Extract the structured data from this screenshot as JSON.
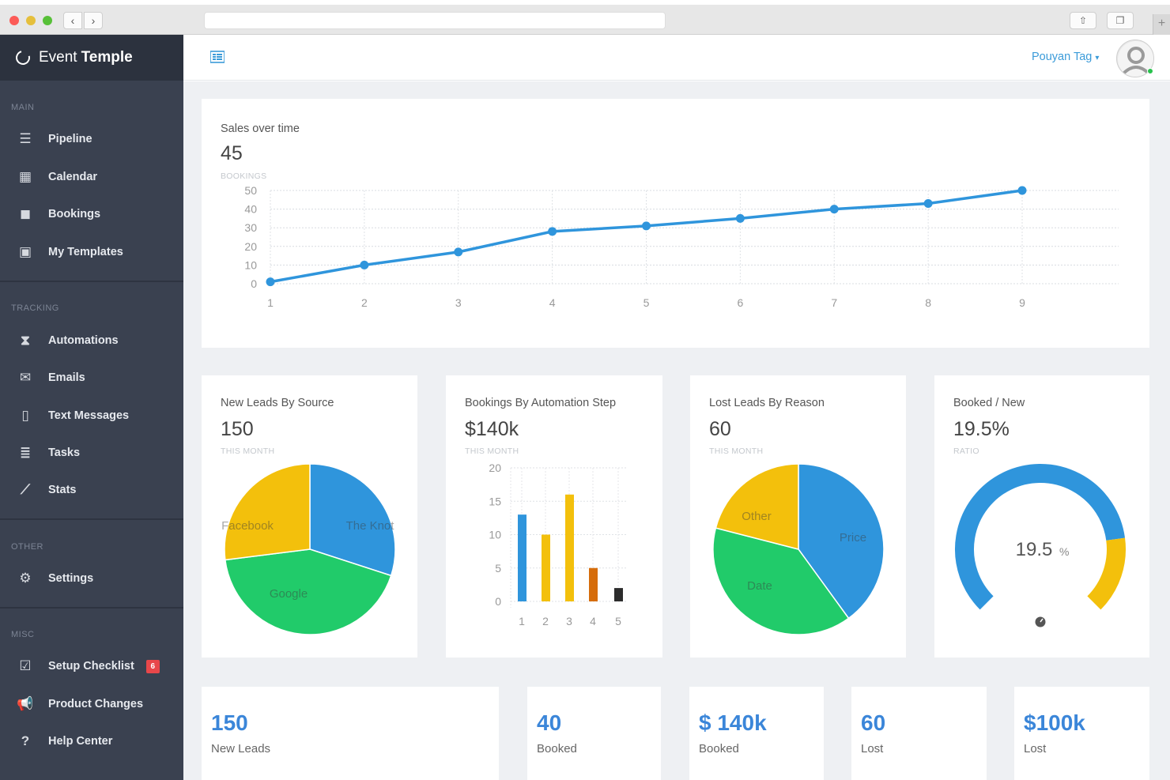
{
  "app": {
    "name_light": "Event",
    "name_bold": "Temple"
  },
  "sidebar": {
    "sections": [
      {
        "title": "MAIN",
        "items": [
          {
            "label": "Pipeline",
            "icon": "pipeline-icon"
          },
          {
            "label": "Calendar",
            "icon": "calendar-icon"
          },
          {
            "label": "Bookings",
            "icon": "bookmark-icon"
          },
          {
            "label": "My Templates",
            "icon": "templates-icon"
          }
        ]
      },
      {
        "title": "TRACKING",
        "items": [
          {
            "label": "Automations",
            "icon": "hourglass-icon"
          },
          {
            "label": "Emails",
            "icon": "envelope-icon"
          },
          {
            "label": "Text Messages",
            "icon": "mobile-icon"
          },
          {
            "label": "Tasks",
            "icon": "tasks-icon"
          },
          {
            "label": "Stats",
            "icon": "stats-icon"
          }
        ]
      },
      {
        "title": "OTHER",
        "items": [
          {
            "label": "Settings",
            "icon": "gears-icon"
          }
        ]
      },
      {
        "title": "MISC",
        "items": [
          {
            "label": "Setup Checklist",
            "icon": "checklist-icon",
            "badge": "6"
          },
          {
            "label": "Product Changes",
            "icon": "megaphone-icon"
          },
          {
            "label": "Help Center",
            "icon": "question-icon"
          }
        ]
      }
    ]
  },
  "topbar": {
    "user_name": "Pouyan Tag",
    "user_caret": "▾"
  },
  "colors": {
    "blue": "#2f95dc",
    "yellow": "#f3c00c",
    "green": "#21cb6a",
    "orange": "#d66d0b",
    "dark": "#2c2c2c",
    "stat_blue": "#3b86d9"
  },
  "sales_card": {
    "title": "Sales over time",
    "value": "45",
    "sub": "BOOKINGS"
  },
  "cards": {
    "leads_source": {
      "title": "New Leads By Source",
      "value": "150",
      "sub": "THIS MONTH"
    },
    "bookings_step": {
      "title": "Bookings By Automation Step",
      "value": "$140k",
      "sub": "THIS MONTH"
    },
    "lost_reason": {
      "title": "Lost Leads By Reason",
      "value": "60",
      "sub": "THIS MONTH"
    },
    "booked_new": {
      "title": "Booked / New",
      "value": "19.5%",
      "sub": "RATIO"
    }
  },
  "chart_data": [
    {
      "type": "line",
      "x": [
        1,
        2,
        3,
        4,
        5,
        6,
        7,
        8,
        9
      ],
      "series": [
        {
          "values": [
            1,
            10,
            17,
            28,
            31,
            35,
            40,
            43,
            50
          ]
        }
      ],
      "xlabel": "",
      "ylabel": "",
      "ylim": [
        0,
        50
      ],
      "yticks": [
        0,
        10,
        20,
        30,
        40,
        50
      ],
      "grid": true
    },
    {
      "type": "pie",
      "labels": [
        "The Knot",
        "Google",
        "Facebook"
      ],
      "values": [
        30,
        43,
        27
      ]
    },
    {
      "type": "bar",
      "categories": [
        "1",
        "2",
        "3",
        "4",
        "5"
      ],
      "values": [
        13,
        10,
        16,
        5,
        2
      ],
      "ylim": [
        0,
        20
      ],
      "yticks": [
        0,
        5,
        10,
        15,
        20
      ],
      "grid": true
    },
    {
      "type": "pie",
      "labels": [
        "Price",
        "Date",
        "Other"
      ],
      "values": [
        40,
        39,
        21
      ]
    },
    {
      "type": "gauge",
      "value": 19.5,
      "label": "19.5",
      "unit": "%"
    }
  ],
  "stats": [
    {
      "value": "150",
      "label": "New Leads"
    },
    {
      "value": "40",
      "label": "Booked"
    },
    {
      "value": "$ 140k",
      "label": "Booked"
    },
    {
      "value": "60",
      "label": "Lost"
    },
    {
      "value": "$100k",
      "label": "Lost"
    }
  ]
}
